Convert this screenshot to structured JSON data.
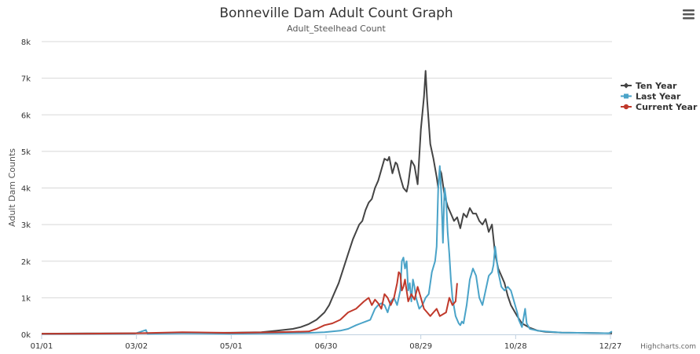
{
  "header": {
    "title": "Bonneville Dam Adult Count Graph",
    "subtitle": "Adult_Steelhead Count"
  },
  "menu": {
    "icon": "hamburger-menu-icon"
  },
  "credit": "Highcharts.com",
  "chart_data": {
    "type": "line",
    "title": "Bonneville Dam Adult Count Graph",
    "subtitle": "Adult_Steelhead Count",
    "xlabel": "",
    "ylabel": "Adult Dam Counts",
    "x_range": [
      1,
      362
    ],
    "ylim": [
      0,
      8000
    ],
    "x_ticks": [
      {
        "day": 1,
        "label": "01/01"
      },
      {
        "day": 61,
        "label": "03/02"
      },
      {
        "day": 121,
        "label": "05/01"
      },
      {
        "day": 181,
        "label": "06/30"
      },
      {
        "day": 241,
        "label": "08/29"
      },
      {
        "day": 301,
        "label": "10/28"
      },
      {
        "day": 361,
        "label": "12/27"
      }
    ],
    "y_ticks": [
      {
        "value": 0,
        "label": "0k"
      },
      {
        "value": 1000,
        "label": "1k"
      },
      {
        "value": 2000,
        "label": "2k"
      },
      {
        "value": 3000,
        "label": "3k"
      },
      {
        "value": 4000,
        "label": "4k"
      },
      {
        "value": 5000,
        "label": "5k"
      },
      {
        "value": 6000,
        "label": "6k"
      },
      {
        "value": 7000,
        "label": "7k"
      },
      {
        "value": 8000,
        "label": "8k"
      }
    ],
    "grid": true,
    "legend_position": "right",
    "series": [
      {
        "name": "Ten Year",
        "color": "#444444",
        "marker": "diamond",
        "points": [
          [
            1,
            20
          ],
          [
            30,
            25
          ],
          [
            60,
            30
          ],
          [
            90,
            40
          ],
          [
            120,
            45
          ],
          [
            140,
            60
          ],
          [
            150,
            100
          ],
          [
            160,
            150
          ],
          [
            165,
            200
          ],
          [
            170,
            280
          ],
          [
            175,
            400
          ],
          [
            180,
            600
          ],
          [
            183,
            800
          ],
          [
            186,
            1100
          ],
          [
            189,
            1400
          ],
          [
            192,
            1800
          ],
          [
            195,
            2200
          ],
          [
            198,
            2600
          ],
          [
            200,
            2800
          ],
          [
            202,
            3000
          ],
          [
            204,
            3100
          ],
          [
            206,
            3400
          ],
          [
            208,
            3600
          ],
          [
            210,
            3700
          ],
          [
            212,
            4000
          ],
          [
            214,
            4200
          ],
          [
            216,
            4500
          ],
          [
            218,
            4800
          ],
          [
            220,
            4750
          ],
          [
            221,
            4850
          ],
          [
            223,
            4400
          ],
          [
            225,
            4700
          ],
          [
            226,
            4650
          ],
          [
            228,
            4300
          ],
          [
            230,
            4000
          ],
          [
            232,
            3900
          ],
          [
            233,
            4100
          ],
          [
            235,
            4750
          ],
          [
            237,
            4600
          ],
          [
            239,
            4100
          ],
          [
            241,
            5600
          ],
          [
            243,
            6500
          ],
          [
            244,
            7200
          ],
          [
            245,
            6400
          ],
          [
            247,
            5200
          ],
          [
            249,
            4800
          ],
          [
            251,
            4300
          ],
          [
            252,
            4000
          ],
          [
            253,
            4500
          ],
          [
            254,
            4400
          ],
          [
            256,
            3800
          ],
          [
            258,
            3500
          ],
          [
            260,
            3300
          ],
          [
            262,
            3100
          ],
          [
            264,
            3200
          ],
          [
            266,
            2900
          ],
          [
            268,
            3300
          ],
          [
            270,
            3200
          ],
          [
            272,
            3450
          ],
          [
            274,
            3300
          ],
          [
            276,
            3300
          ],
          [
            278,
            3100
          ],
          [
            280,
            3000
          ],
          [
            282,
            3150
          ],
          [
            284,
            2800
          ],
          [
            286,
            3000
          ],
          [
            288,
            2200
          ],
          [
            290,
            1800
          ],
          [
            292,
            1600
          ],
          [
            294,
            1400
          ],
          [
            296,
            1050
          ],
          [
            298,
            800
          ],
          [
            300,
            650
          ],
          [
            302,
            500
          ],
          [
            305,
            300
          ],
          [
            310,
            180
          ],
          [
            315,
            100
          ],
          [
            320,
            70
          ],
          [
            330,
            50
          ],
          [
            345,
            40
          ],
          [
            362,
            30
          ]
        ]
      },
      {
        "name": "Last Year",
        "color": "#4aa3c8",
        "marker": "square",
        "points": [
          [
            1,
            10
          ],
          [
            30,
            15
          ],
          [
            60,
            20
          ],
          [
            67,
            120
          ],
          [
            68,
            20
          ],
          [
            90,
            30
          ],
          [
            120,
            20
          ],
          [
            150,
            30
          ],
          [
            170,
            40
          ],
          [
            180,
            60
          ],
          [
            185,
            80
          ],
          [
            190,
            100
          ],
          [
            195,
            150
          ],
          [
            200,
            250
          ],
          [
            203,
            300
          ],
          [
            206,
            350
          ],
          [
            209,
            400
          ],
          [
            212,
            700
          ],
          [
            214,
            800
          ],
          [
            216,
            850
          ],
          [
            218,
            800
          ],
          [
            220,
            600
          ],
          [
            222,
            900
          ],
          [
            224,
            1000
          ],
          [
            226,
            800
          ],
          [
            228,
            1200
          ],
          [
            229,
            2000
          ],
          [
            230,
            2100
          ],
          [
            231,
            1800
          ],
          [
            232,
            2000
          ],
          [
            233,
            1200
          ],
          [
            234,
            1400
          ],
          [
            235,
            900
          ],
          [
            236,
            1500
          ],
          [
            237,
            1300
          ],
          [
            238,
            1000
          ],
          [
            240,
            700
          ],
          [
            242,
            800
          ],
          [
            244,
            1000
          ],
          [
            246,
            1100
          ],
          [
            248,
            1700
          ],
          [
            250,
            2000
          ],
          [
            251,
            2400
          ],
          [
            252,
            4000
          ],
          [
            253,
            4600
          ],
          [
            254,
            3800
          ],
          [
            255,
            2500
          ],
          [
            256,
            4000
          ],
          [
            257,
            3700
          ],
          [
            258,
            2800
          ],
          [
            259,
            2200
          ],
          [
            260,
            1500
          ],
          [
            261,
            1000
          ],
          [
            263,
            500
          ],
          [
            265,
            300
          ],
          [
            266,
            250
          ],
          [
            267,
            350
          ],
          [
            268,
            300
          ],
          [
            270,
            800
          ],
          [
            272,
            1500
          ],
          [
            274,
            1800
          ],
          [
            276,
            1600
          ],
          [
            278,
            1000
          ],
          [
            280,
            800
          ],
          [
            282,
            1200
          ],
          [
            284,
            1600
          ],
          [
            286,
            1700
          ],
          [
            287,
            1900
          ],
          [
            288,
            2400
          ],
          [
            290,
            1700
          ],
          [
            292,
            1300
          ],
          [
            294,
            1200
          ],
          [
            296,
            1300
          ],
          [
            298,
            1200
          ],
          [
            300,
            900
          ],
          [
            302,
            600
          ],
          [
            303,
            400
          ],
          [
            305,
            200
          ],
          [
            307,
            700
          ],
          [
            308,
            300
          ],
          [
            310,
            150
          ],
          [
            315,
            100
          ],
          [
            320,
            80
          ],
          [
            330,
            50
          ],
          [
            345,
            40
          ],
          [
            360,
            30
          ],
          [
            362,
            80
          ]
        ]
      },
      {
        "name": "Current Year",
        "color": "#c0392b",
        "marker": "circle",
        "points": [
          [
            1,
            15
          ],
          [
            30,
            20
          ],
          [
            60,
            30
          ],
          [
            90,
            60
          ],
          [
            120,
            40
          ],
          [
            150,
            60
          ],
          [
            170,
            80
          ],
          [
            175,
            150
          ],
          [
            180,
            250
          ],
          [
            185,
            300
          ],
          [
            190,
            400
          ],
          [
            195,
            600
          ],
          [
            200,
            700
          ],
          [
            205,
            900
          ],
          [
            208,
            1000
          ],
          [
            210,
            800
          ],
          [
            212,
            950
          ],
          [
            214,
            850
          ],
          [
            216,
            700
          ],
          [
            218,
            1100
          ],
          [
            220,
            1000
          ],
          [
            222,
            800
          ],
          [
            224,
            1000
          ],
          [
            226,
            1400
          ],
          [
            227,
            1700
          ],
          [
            228,
            1650
          ],
          [
            229,
            1200
          ],
          [
            230,
            1300
          ],
          [
            231,
            1500
          ],
          [
            233,
            900
          ],
          [
            235,
            1100
          ],
          [
            237,
            950
          ],
          [
            239,
            1300
          ],
          [
            241,
            1000
          ],
          [
            243,
            700
          ],
          [
            245,
            600
          ],
          [
            247,
            500
          ],
          [
            249,
            600
          ],
          [
            251,
            700
          ],
          [
            253,
            500
          ],
          [
            255,
            550
          ],
          [
            257,
            600
          ],
          [
            259,
            1000
          ],
          [
            261,
            800
          ],
          [
            263,
            900
          ],
          [
            264,
            1400
          ]
        ]
      }
    ]
  }
}
